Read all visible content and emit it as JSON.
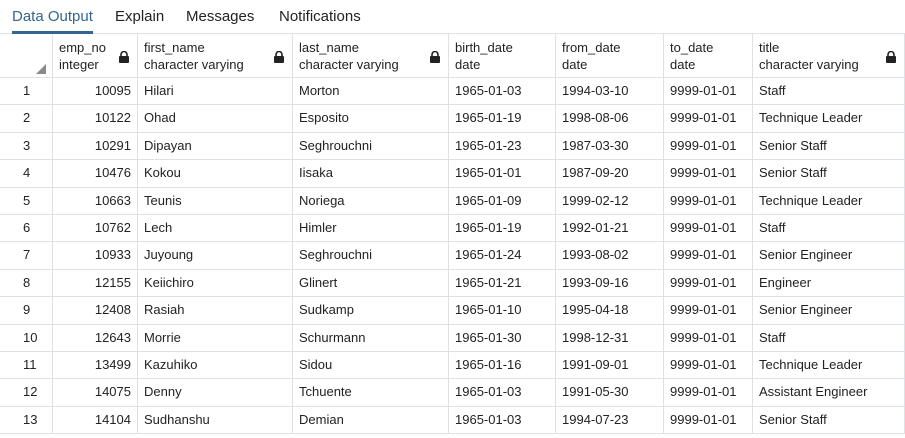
{
  "tabs": [
    {
      "label": "Data Output",
      "active": true
    },
    {
      "label": "Explain",
      "active": false
    },
    {
      "label": "Messages",
      "active": false
    },
    {
      "label": "Notifications",
      "active": false
    }
  ],
  "columns": [
    {
      "name": "emp_no",
      "type": "integer",
      "locked": true,
      "align": "right"
    },
    {
      "name": "first_name",
      "type": "character varying",
      "locked": true,
      "align": "left"
    },
    {
      "name": "last_name",
      "type": "character varying",
      "locked": true,
      "align": "left"
    },
    {
      "name": "birth_date",
      "type": "date",
      "locked": false,
      "align": "left"
    },
    {
      "name": "from_date",
      "type": "date",
      "locked": false,
      "align": "left"
    },
    {
      "name": "to_date",
      "type": "date",
      "locked": false,
      "align": "left"
    },
    {
      "name": "title",
      "type": "character varying",
      "locked": true,
      "align": "left"
    }
  ],
  "rows": [
    {
      "n": "1",
      "cells": [
        "10095",
        "Hilari",
        "Morton",
        "1965-01-03",
        "1994-03-10",
        "9999-01-01",
        "Staff"
      ]
    },
    {
      "n": "2",
      "cells": [
        "10122",
        "Ohad",
        "Esposito",
        "1965-01-19",
        "1998-08-06",
        "9999-01-01",
        "Technique Leader"
      ]
    },
    {
      "n": "3",
      "cells": [
        "10291",
        "Dipayan",
        "Seghrouchni",
        "1965-01-23",
        "1987-03-30",
        "9999-01-01",
        "Senior Staff"
      ]
    },
    {
      "n": "4",
      "cells": [
        "10476",
        "Kokou",
        "Iisaka",
        "1965-01-01",
        "1987-09-20",
        "9999-01-01",
        "Senior Staff"
      ]
    },
    {
      "n": "5",
      "cells": [
        "10663",
        "Teunis",
        "Noriega",
        "1965-01-09",
        "1999-02-12",
        "9999-01-01",
        "Technique Leader"
      ]
    },
    {
      "n": "6",
      "cells": [
        "10762",
        "Lech",
        "Himler",
        "1965-01-19",
        "1992-01-21",
        "9999-01-01",
        "Staff"
      ]
    },
    {
      "n": "7",
      "cells": [
        "10933",
        "Juyoung",
        "Seghrouchni",
        "1965-01-24",
        "1993-08-02",
        "9999-01-01",
        "Senior Engineer"
      ]
    },
    {
      "n": "8",
      "cells": [
        "12155",
        "Keiichiro",
        "Glinert",
        "1965-01-21",
        "1993-09-16",
        "9999-01-01",
        "Engineer"
      ]
    },
    {
      "n": "9",
      "cells": [
        "12408",
        "Rasiah",
        "Sudkamp",
        "1965-01-10",
        "1995-04-18",
        "9999-01-01",
        "Senior Engineer"
      ]
    },
    {
      "n": "10",
      "cells": [
        "12643",
        "Morrie",
        "Schurmann",
        "1965-01-30",
        "1998-12-31",
        "9999-01-01",
        "Staff"
      ]
    },
    {
      "n": "11",
      "cells": [
        "13499",
        "Kazuhiko",
        "Sidou",
        "1965-01-16",
        "1991-09-01",
        "9999-01-01",
        "Technique Leader"
      ]
    },
    {
      "n": "12",
      "cells": [
        "14075",
        "Denny",
        "Tchuente",
        "1965-01-03",
        "1991-05-30",
        "9999-01-01",
        "Assistant Engineer"
      ]
    },
    {
      "n": "13",
      "cells": [
        "14104",
        "Sudhanshu",
        "Demian",
        "1965-01-03",
        "1994-07-23",
        "9999-01-01",
        "Senior Staff"
      ]
    }
  ],
  "colors": {
    "accent": "#326690",
    "border": "#dee2e6",
    "text": "#222222"
  }
}
